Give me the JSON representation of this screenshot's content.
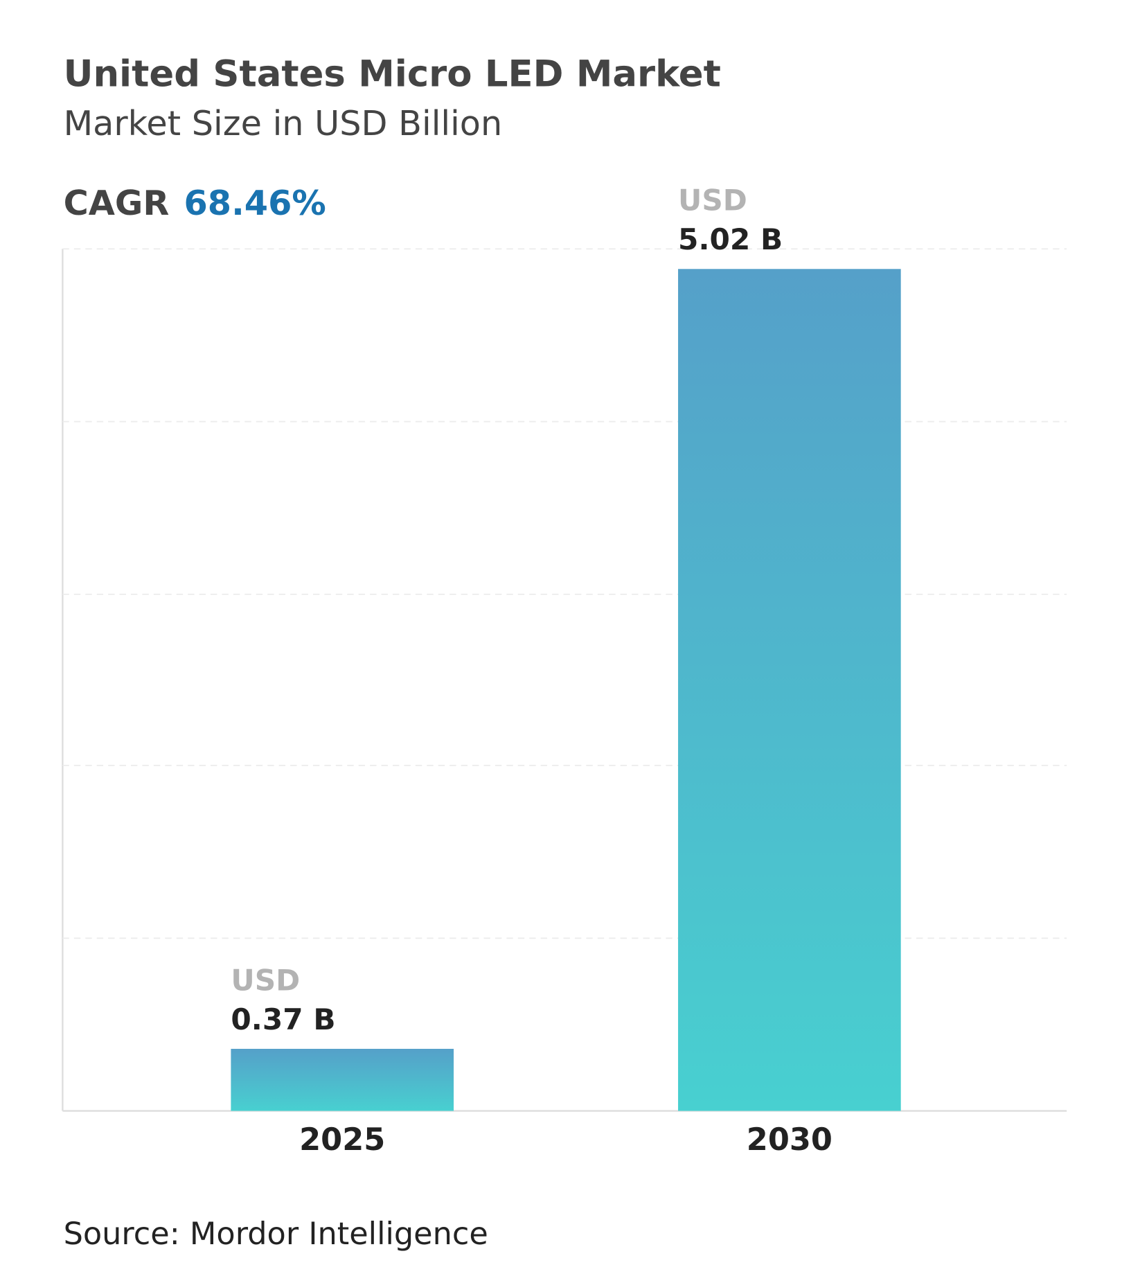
{
  "chart_data": {
    "type": "bar",
    "title": "United States Micro LED Market",
    "subtitle": "Market Size in USD Billion",
    "cagr_label": "CAGR",
    "cagr_value": "68.46%",
    "categories": [
      "2025",
      "2030"
    ],
    "values": [
      0.37,
      5.02
    ],
    "value_labels": [
      "0.37 B",
      "5.02 B"
    ],
    "value_label_prefix": "USD",
    "color": [
      "#55a0c9",
      "#48d0d0"
    ],
    "ylim": [
      0,
      5.14
    ],
    "yticks": [
      0,
      1.03,
      2.06,
      3.08,
      4.11,
      5.14
    ],
    "grid": true,
    "source": "Source: Mordor Intelligence"
  }
}
